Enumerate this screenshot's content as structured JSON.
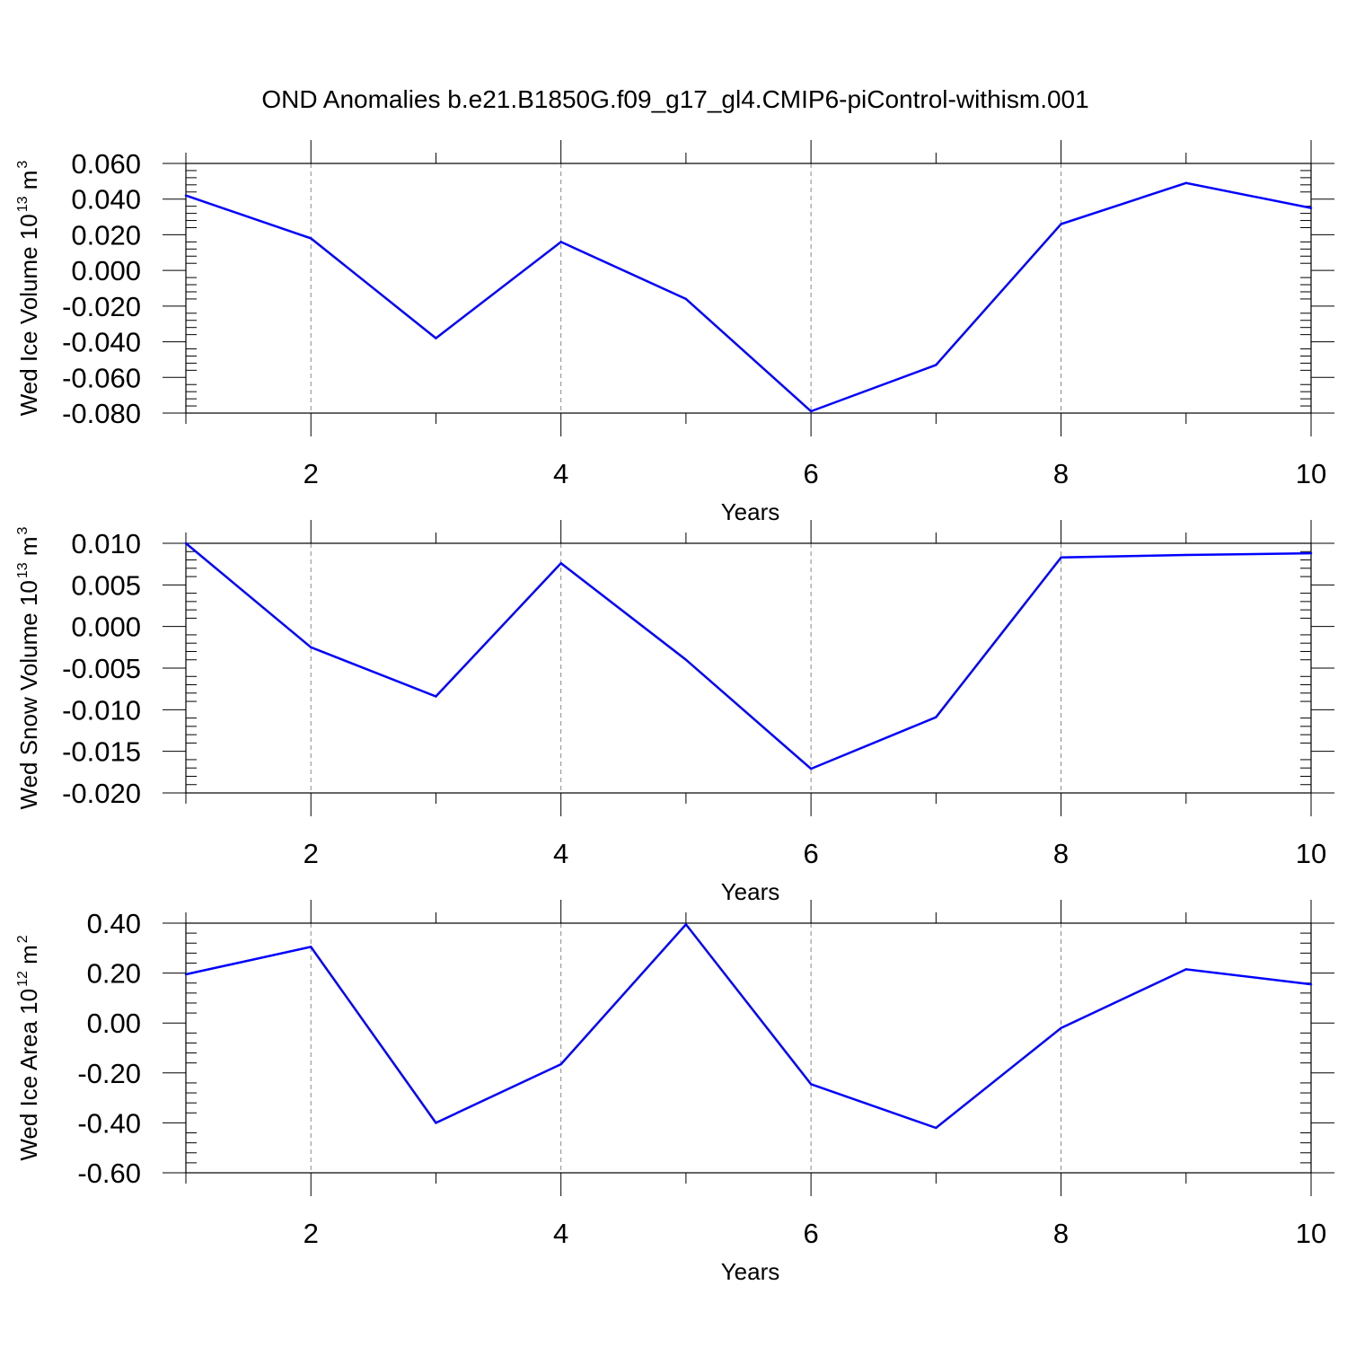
{
  "title": "OND Anomalies b.e21.B1850G.f09_g17_gl4.CMIP6-piControl-withism.001",
  "colors": {
    "line": "#0000ff",
    "axis": "#000000",
    "grid": "#888888",
    "background": "#ffffff"
  },
  "chart_data": [
    {
      "type": "line",
      "xlabel": "Years",
      "ylabel": {
        "text": "Wed Ice Volume 10",
        "exp": "13",
        "unit": " m",
        "unit_exp": "3"
      },
      "xlim": [
        1,
        10
      ],
      "ylim": [
        -0.08,
        0.06
      ],
      "xticks": [
        2,
        4,
        6,
        8,
        10
      ],
      "xtick_labels": [
        "2",
        "4",
        "6",
        "8",
        "10"
      ],
      "yticks": [
        0.06,
        0.04,
        0.02,
        0.0,
        -0.02,
        -0.04,
        -0.06,
        -0.08
      ],
      "ytick_labels": [
        "0.060",
        "0.040",
        "0.020",
        "0.000",
        "-0.020",
        "-0.040",
        "-0.060",
        "-0.080"
      ],
      "grid": "vertical dashed at major x ticks",
      "x": [
        1,
        2,
        3,
        4,
        5,
        6,
        7,
        8,
        9,
        10
      ],
      "values": [
        0.042,
        0.018,
        -0.038,
        0.016,
        -0.016,
        -0.079,
        -0.053,
        0.026,
        0.049,
        0.035
      ]
    },
    {
      "type": "line",
      "xlabel": "Years",
      "ylabel": {
        "text": "Wed Snow Volume 10",
        "exp": "13",
        "unit": " m",
        "unit_exp": "3"
      },
      "xlim": [
        1,
        10
      ],
      "ylim": [
        -0.02,
        0.01
      ],
      "xticks": [
        2,
        4,
        6,
        8,
        10
      ],
      "xtick_labels": [
        "2",
        "4",
        "6",
        "8",
        "10"
      ],
      "yticks": [
        0.01,
        0.005,
        0.0,
        -0.005,
        -0.01,
        -0.015,
        -0.02
      ],
      "ytick_labels": [
        "0.010",
        "0.005",
        "0.000",
        "-0.005",
        "-0.010",
        "-0.015",
        "-0.020"
      ],
      "grid": "vertical dashed at major x ticks",
      "x": [
        1,
        2,
        3,
        4,
        5,
        6,
        7,
        8,
        9,
        10
      ],
      "values": [
        0.01,
        -0.0025,
        -0.0084,
        0.0076,
        -0.004,
        -0.0171,
        -0.0109,
        0.0083,
        0.0086,
        0.0088
      ]
    },
    {
      "type": "line",
      "xlabel": "Years",
      "ylabel": {
        "text": "Wed Ice Area 10",
        "exp": "12",
        "unit": " m",
        "unit_exp": "2"
      },
      "xlim": [
        1,
        10
      ],
      "ylim": [
        -0.6,
        0.4
      ],
      "xticks": [
        2,
        4,
        6,
        8,
        10
      ],
      "xtick_labels": [
        "2",
        "4",
        "6",
        "8",
        "10"
      ],
      "yticks": [
        0.4,
        0.2,
        0.0,
        -0.2,
        -0.4,
        -0.6
      ],
      "ytick_labels": [
        "0.40",
        "0.20",
        "0.00",
        "-0.20",
        "-0.40",
        "-0.60"
      ],
      "grid": "vertical dashed at major x ticks",
      "x": [
        1,
        2,
        3,
        4,
        5,
        6,
        7,
        8,
        9,
        10
      ],
      "values": [
        0.195,
        0.305,
        -0.4,
        -0.165,
        0.395,
        -0.245,
        -0.42,
        -0.02,
        0.215,
        0.155
      ]
    }
  ]
}
